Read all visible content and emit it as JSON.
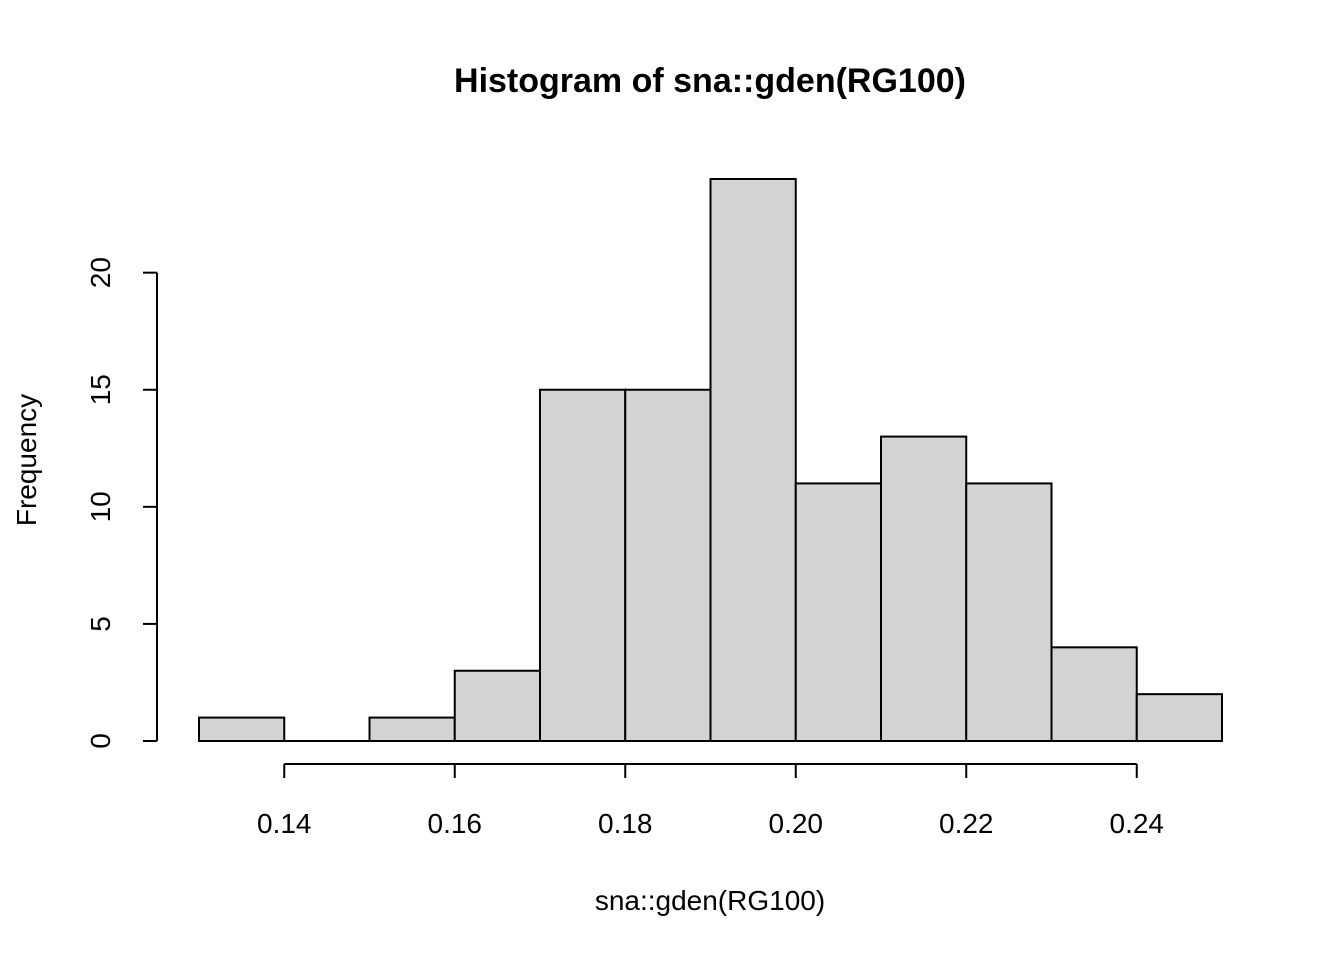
{
  "chart_data": {
    "type": "bar",
    "title": "Histogram of sna::gden(RG100)",
    "xlabel": "sna::gden(RG100)",
    "ylabel": "Frequency",
    "bin_edges": [
      0.13,
      0.14,
      0.15,
      0.16,
      0.17,
      0.18,
      0.19,
      0.2,
      0.21,
      0.22,
      0.23,
      0.24,
      0.25
    ],
    "values": [
      1,
      0,
      1,
      3,
      15,
      15,
      24,
      11,
      13,
      11,
      4,
      2
    ],
    "x_ticks": [
      0.14,
      0.16,
      0.18,
      0.2,
      0.22,
      0.24
    ],
    "x_tick_labels": [
      "0.14",
      "0.16",
      "0.18",
      "0.20",
      "0.22",
      "0.24"
    ],
    "y_ticks": [
      0,
      5,
      10,
      15,
      20
    ],
    "y_tick_labels": [
      "0",
      "5",
      "10",
      "15",
      "20"
    ],
    "xlim": [
      0.13,
      0.25
    ],
    "ylim": [
      0,
      24
    ],
    "bar_color": "#d3d3d3",
    "grid": false
  }
}
